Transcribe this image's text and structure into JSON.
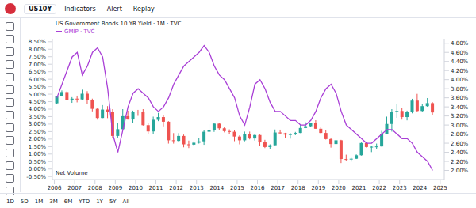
{
  "chart_data": {
    "type": "candlestick",
    "title": "US Government Bonds 10 YR Yield · 1M · TVC",
    "x": [
      2006.125,
      2006.375,
      2006.625,
      2006.875,
      2007.125,
      2007.375,
      2007.625,
      2007.875,
      2008.125,
      2008.375,
      2008.625,
      2008.875,
      2009.125,
      2009.375,
      2009.625,
      2009.875,
      2010.125,
      2010.375,
      2010.625,
      2010.875,
      2011.125,
      2011.375,
      2011.625,
      2011.875,
      2012.125,
      2012.375,
      2012.625,
      2012.875,
      2013.125,
      2013.375,
      2013.625,
      2013.875,
      2014.125,
      2014.375,
      2014.625,
      2014.875,
      2015.125,
      2015.375,
      2015.625,
      2015.875,
      2016.125,
      2016.375,
      2016.625,
      2016.875,
      2017.125,
      2017.375,
      2017.625,
      2017.875,
      2018.125,
      2018.375,
      2018.625,
      2018.875,
      2019.125,
      2019.375,
      2019.625,
      2019.875,
      2020.125,
      2020.375,
      2020.625,
      2020.875,
      2021.125,
      2021.375,
      2021.625,
      2021.875,
      2022.125,
      2022.375,
      2022.625,
      2022.875,
      2023.125,
      2023.375,
      2023.625,
      2023.875,
      2024.125,
      2024.375,
      2024.625
    ],
    "xlim": [
      2005.9,
      2025.2
    ],
    "xticks": [
      2006,
      2007,
      2008,
      2009,
      2010,
      2011,
      2012,
      2013,
      2014,
      2015,
      2016,
      2017,
      2018,
      2019,
      2020,
      2021,
      2022,
      2023,
      2024,
      2025
    ],
    "ylim": [
      -0.7,
      8.7
    ],
    "yticks": [
      {
        "value": -0.5,
        "label": "-0.50%"
      },
      {
        "value": 0,
        "label": "0.00%"
      },
      {
        "value": 0.5,
        "label": "0.50%"
      },
      {
        "value": 1,
        "label": "1.00%"
      },
      {
        "value": 1.5,
        "label": "1.50%"
      },
      {
        "value": 2,
        "label": "2.00%"
      },
      {
        "value": 2.5,
        "label": "2.50%"
      },
      {
        "value": 3,
        "label": "3.00%"
      },
      {
        "value": 3.5,
        "label": "3.50%"
      },
      {
        "value": 4,
        "label": "4.00%"
      },
      {
        "value": 4.5,
        "label": "4.50%"
      },
      {
        "value": 5,
        "label": "5.00%"
      },
      {
        "value": 5.5,
        "label": "5.50%"
      },
      {
        "value": 6,
        "label": "6.00%"
      },
      {
        "value": 6.5,
        "label": "6.50%"
      },
      {
        "value": 7,
        "label": "7.00%"
      },
      {
        "value": 7.5,
        "label": "7.50%"
      },
      {
        "value": 8,
        "label": "8.00%"
      },
      {
        "value": 8.5,
        "label": "8.50%"
      }
    ],
    "y2lim": [
      1.8,
      4.9
    ],
    "y2ticks": [
      {
        "value": 2,
        "label": "2.00%"
      },
      {
        "value": 2.2,
        "label": "2.20%"
      },
      {
        "value": 2.4,
        "label": "2.40%"
      },
      {
        "value": 2.6,
        "label": "2.60%"
      },
      {
        "value": 2.8,
        "label": "2.80%"
      },
      {
        "value": 3,
        "label": "3.00%"
      },
      {
        "value": 3.2,
        "label": "3.20%"
      },
      {
        "value": 3.4,
        "label": "3.40%"
      },
      {
        "value": 3.6,
        "label": "3.60%"
      },
      {
        "value": 3.8,
        "label": "3.80%"
      },
      {
        "value": 4,
        "label": "4.00%"
      },
      {
        "value": 4.2,
        "label": "4.20%"
      },
      {
        "value": 4.4,
        "label": "4.40%"
      },
      {
        "value": 4.6,
        "label": "4.60%"
      },
      {
        "value": 4.8,
        "label": "4.80%"
      }
    ],
    "grid": false,
    "legend": "upper left",
    "series": [
      {
        "name": "US10Y",
        "type": "candlestick",
        "colors": [
          "#26a69a",
          "#ef5350"
        ],
        "open": [
          4.39,
          4.85,
          5.14,
          4.63,
          4.7,
          4.65,
          5.03,
          4.59,
          4.02,
          3.41,
          3.97,
          3.83,
          2.21,
          2.66,
          3.53,
          3.31,
          3.84,
          3.83,
          2.93,
          2.51,
          3.29,
          3.47,
          3.16,
          1.92,
          1.88,
          2.21,
          1.65,
          1.63,
          1.76,
          1.85,
          2.49,
          2.61,
          3.03,
          2.72,
          2.53,
          2.49,
          2.17,
          1.92,
          2.35,
          2.04,
          2.27,
          1.78,
          1.47,
          1.59,
          2.44,
          2.39,
          2.3,
          2.33,
          2.41,
          2.74,
          2.86,
          3.06,
          2.69,
          2.41,
          2.0,
          1.67,
          1.92,
          0.67,
          0.66,
          0.69,
          0.92,
          1.74,
          1.47,
          1.49,
          1.51,
          2.33,
          3.01,
          3.83,
          3.88,
          3.47,
          3.84,
          4.57,
          3.88,
          4.2,
          4.4
        ],
        "high": [
          4.86,
          5.25,
          5.2,
          4.8,
          4.9,
          5.3,
          5.2,
          4.7,
          4.1,
          4.27,
          4.2,
          4.0,
          3.05,
          4.0,
          3.9,
          3.9,
          3.95,
          4.0,
          3.05,
          3.5,
          3.75,
          3.6,
          3.2,
          2.4,
          2.4,
          2.3,
          1.9,
          1.85,
          2.08,
          2.6,
          3.0,
          3.05,
          3.05,
          2.82,
          2.65,
          2.62,
          2.25,
          2.5,
          2.5,
          2.35,
          2.3,
          1.95,
          1.65,
          2.64,
          2.63,
          2.42,
          2.4,
          2.48,
          2.95,
          3.12,
          3.1,
          3.26,
          2.8,
          2.6,
          2.1,
          1.97,
          1.95,
          0.96,
          0.75,
          0.98,
          1.77,
          1.77,
          1.56,
          1.7,
          2.55,
          3.5,
          4.0,
          4.33,
          4.09,
          3.9,
          4.69,
          5.02,
          4.35,
          4.74,
          4.47
        ],
        "low": [
          4.35,
          4.85,
          4.6,
          4.42,
          4.45,
          4.6,
          4.35,
          3.85,
          3.3,
          3.4,
          3.4,
          2.05,
          2.1,
          2.65,
          3.3,
          3.1,
          3.55,
          2.9,
          2.35,
          2.35,
          3.2,
          2.85,
          1.7,
          1.7,
          1.8,
          1.45,
          1.4,
          1.57,
          1.7,
          1.62,
          2.45,
          2.48,
          2.58,
          2.45,
          2.33,
          1.86,
          1.65,
          1.85,
          1.98,
          1.9,
          1.53,
          1.4,
          1.32,
          1.59,
          2.31,
          2.1,
          2.03,
          2.26,
          2.4,
          2.73,
          2.8,
          2.68,
          2.37,
          1.97,
          1.43,
          1.52,
          0.4,
          0.54,
          0.5,
          0.67,
          0.9,
          1.43,
          1.13,
          1.34,
          1.5,
          2.33,
          2.5,
          3.42,
          3.3,
          3.25,
          3.72,
          3.79,
          3.79,
          4.16,
          3.6
        ],
        "close": [
          4.85,
          5.14,
          4.63,
          4.7,
          4.65,
          5.03,
          4.59,
          4.02,
          3.41,
          3.97,
          3.83,
          2.21,
          2.66,
          3.53,
          3.31,
          3.84,
          3.83,
          2.93,
          2.51,
          3.29,
          3.47,
          3.16,
          1.92,
          1.88,
          2.21,
          1.65,
          1.63,
          1.76,
          1.85,
          2.49,
          2.61,
          3.03,
          2.72,
          2.53,
          2.49,
          2.17,
          1.92,
          2.35,
          2.04,
          2.27,
          1.78,
          1.47,
          1.59,
          2.44,
          2.39,
          2.3,
          2.33,
          2.41,
          2.74,
          2.86,
          3.06,
          2.69,
          2.41,
          2.0,
          1.67,
          1.92,
          0.67,
          0.66,
          0.69,
          0.92,
          1.74,
          1.47,
          1.49,
          1.51,
          2.33,
          3.01,
          3.83,
          3.88,
          3.47,
          3.84,
          4.57,
          3.88,
          4.2,
          4.4,
          3.78
        ]
      },
      {
        "name": "GMIP · TVC",
        "type": "line",
        "color": "#a93fd6",
        "axis": "y2",
        "values": [
          3.6,
          3.9,
          4.2,
          4.5,
          4.6,
          4.1,
          4.3,
          4.6,
          4.7,
          4.5,
          3.8,
          2.8,
          2.4,
          2.9,
          3.4,
          3.7,
          3.8,
          3.7,
          3.6,
          3.4,
          3.3,
          3.4,
          3.6,
          3.9,
          4.1,
          4.3,
          4.4,
          4.5,
          4.6,
          4.75,
          4.6,
          4.3,
          4.1,
          4.0,
          3.8,
          3.6,
          3.2,
          3.0,
          3.4,
          3.9,
          4.0,
          3.8,
          3.5,
          3.3,
          3.3,
          3.2,
          3.1,
          3.1,
          3.0,
          3.0,
          3.1,
          3.3,
          3.6,
          3.8,
          3.9,
          3.7,
          3.3,
          3.0,
          2.9,
          2.8,
          2.7,
          2.6,
          2.6,
          2.7,
          2.8,
          2.9,
          2.9,
          2.8,
          2.7,
          2.7,
          2.6,
          2.4,
          2.3,
          2.2,
          2.0
        ]
      }
    ]
  },
  "ui": {
    "toolbar": [
      "Indicators",
      "Alert",
      "Replay"
    ],
    "pane_label": "Net Volume",
    "ranges": [
      "1D",
      "5D",
      "1M",
      "3M",
      "6M",
      "YTD",
      "1Y",
      "5Y",
      "All"
    ]
  }
}
